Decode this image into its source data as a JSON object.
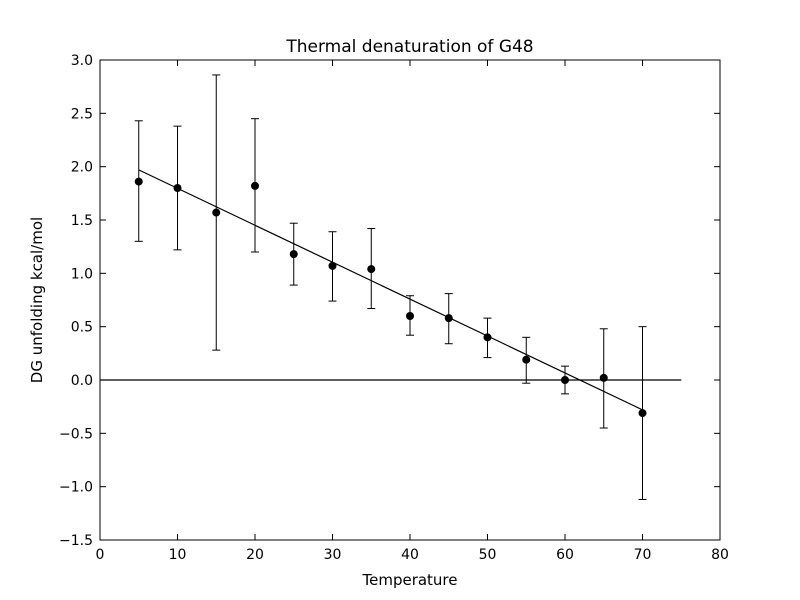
{
  "chart_data": {
    "type": "scatter",
    "title": "Thermal denaturation of G48",
    "xlabel": "Temperature",
    "ylabel": "DG unfolding kcal/mol",
    "xlim": [
      0,
      80
    ],
    "ylim": [
      -1.5,
      3.0
    ],
    "xticks": [
      "0",
      "10",
      "20",
      "30",
      "40",
      "50",
      "60",
      "70",
      "80"
    ],
    "yticks": [
      "−1.5",
      "−1.0",
      "−0.5",
      "0.0",
      "0.5",
      "1.0",
      "1.5",
      "2.0",
      "2.5",
      "3.0"
    ],
    "grid": false,
    "legend": "none",
    "series": [
      {
        "x": [
          5,
          10,
          15,
          20,
          25,
          30,
          35,
          40,
          45,
          50,
          55,
          60,
          65,
          70
        ],
        "y": [
          1.86,
          1.8,
          1.57,
          1.82,
          1.18,
          1.07,
          1.04,
          0.6,
          0.58,
          0.4,
          0.19,
          0.0,
          0.02,
          -0.31
        ],
        "yerr_low": [
          1.3,
          1.22,
          0.28,
          1.2,
          0.89,
          0.74,
          0.67,
          0.42,
          0.34,
          0.21,
          -0.03,
          -0.13,
          -0.45,
          -1.12
        ],
        "yerr_high": [
          2.43,
          2.38,
          2.86,
          2.45,
          1.47,
          1.39,
          1.42,
          0.79,
          0.81,
          0.58,
          0.4,
          0.13,
          0.48,
          0.5
        ],
        "color": "#000000"
      }
    ],
    "fit_line": {
      "x": [
        5,
        70
      ],
      "y": [
        1.97,
        -0.28
      ]
    },
    "zero_line": {
      "x": [
        0,
        75
      ],
      "y": [
        0.0,
        0.0
      ]
    }
  }
}
